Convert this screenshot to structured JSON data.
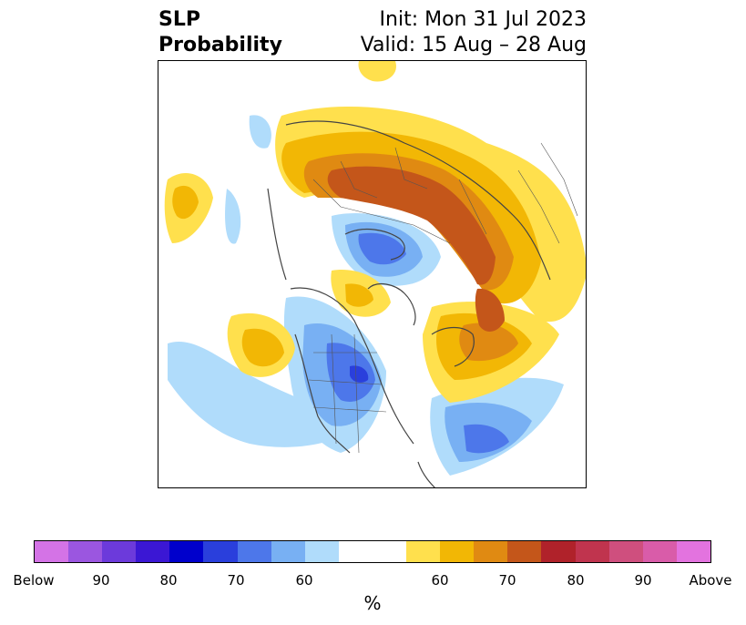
{
  "title": {
    "left_line1": "SLP",
    "left_line2": "Probability",
    "init": "Init: Mon 31 Jul 2023",
    "valid": "Valid: 15 Aug – 28 Aug"
  },
  "colorbar": {
    "colors": [
      "#d473e6",
      "#9b56e0",
      "#6c3adb",
      "#3b17d4",
      "#0000cc",
      "#2a3fdc",
      "#4d77ea",
      "#78b0f3",
      "#b0dcfb",
      "#ffffff",
      "#ffffff",
      "#ffe04d",
      "#f2b705",
      "#e08a12",
      "#c4561a",
      "#b0222a",
      "#c0344e",
      "#cf4f7e",
      "#d95ca9",
      "#e373df"
    ],
    "ticks": [
      "Below",
      "90",
      "80",
      "70",
      "60",
      "60",
      "70",
      "80",
      "90",
      "Above"
    ],
    "unit": "%"
  },
  "legend_meaning": {
    "blue_side": "Below",
    "orange_side": "Above"
  }
}
